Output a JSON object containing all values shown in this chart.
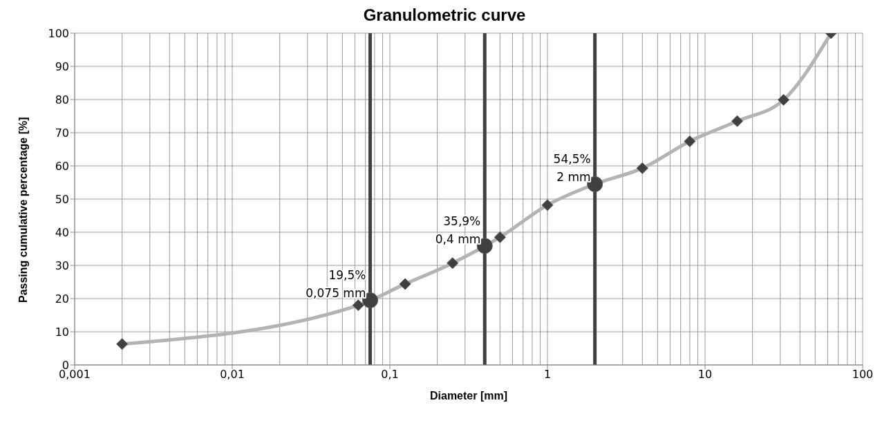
{
  "chart_data": {
    "type": "line",
    "title": "Granulometric curve",
    "xlabel": "Diameter [mm]",
    "ylabel": "Passing cumulative percentage [%]",
    "log": "x",
    "grid": true,
    "legend": false,
    "line_style": "solid",
    "xlim": [
      0.001,
      100
    ],
    "xticks": [
      {
        "value": 0.001,
        "label": "0,001"
      },
      {
        "value": 0.01,
        "label": "0,01"
      },
      {
        "value": 0.1,
        "label": "0,1"
      },
      1,
      10,
      100
    ],
    "ylim": [
      0,
      100
    ],
    "yticks": [
      0,
      10,
      20,
      30,
      40,
      50,
      60,
      70,
      80,
      90,
      100
    ],
    "series": [
      {
        "type": "line",
        "marker": "diamond",
        "color": "#b3b3b3",
        "x": [
          0.002,
          0.063,
          0.125,
          0.25,
          0.5,
          1,
          2,
          4,
          8,
          16,
          31.5,
          63
        ],
        "values": [
          6.3,
          18,
          24.4,
          30.7,
          38.5,
          48.2,
          54.5,
          59.3,
          67.4,
          73.5,
          79.9,
          100
        ]
      },
      {
        "type": "scatter",
        "marker": "circle",
        "color": "#404040",
        "x": [
          0.075,
          0.4,
          2
        ],
        "values": [
          19.5,
          35.9,
          54.5
        ]
      }
    ],
    "ref_lines": [
      {
        "axis": "x",
        "value": 0.075,
        "color": "#404040"
      },
      {
        "axis": "x",
        "value": 0.4,
        "color": "#404040"
      },
      {
        "axis": "x",
        "value": 2,
        "color": "#404040"
      }
    ],
    "annotations": [
      {
        "text": "19,5%",
        "x": 0.075,
        "y": 19.5
      },
      {
        "text": "0,075 mm",
        "x": 0.075,
        "y": 19.5
      },
      {
        "text": "35,9%",
        "x": 0.4,
        "y": 35.9
      },
      {
        "text": "0,4 mm",
        "x": 0.4,
        "y": 35.9
      },
      {
        "text": "54,5%",
        "x": 2,
        "y": 54.5
      },
      {
        "text": "2 mm",
        "x": 2,
        "y": 54.5
      }
    ]
  }
}
